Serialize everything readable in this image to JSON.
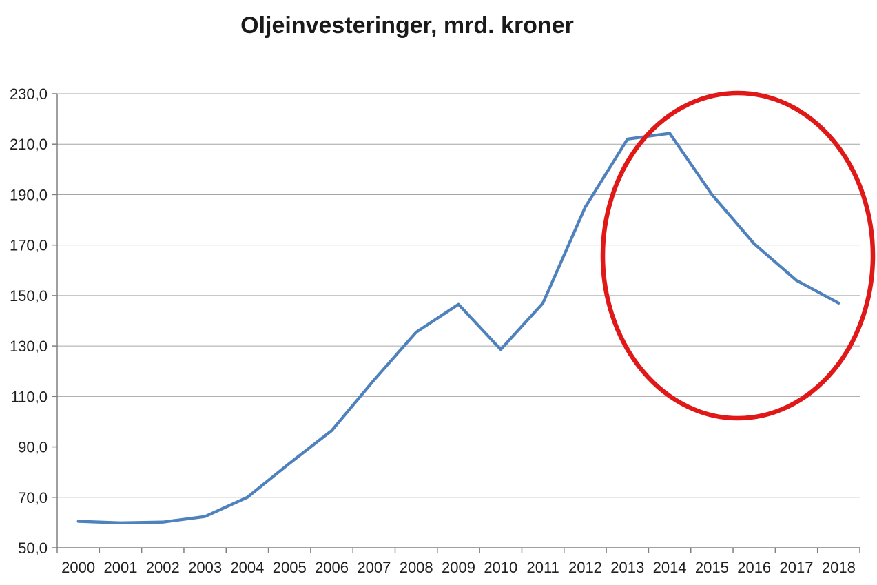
{
  "page": {
    "background_color": "#FFFFFF"
  },
  "chart_data": {
    "type": "line",
    "title": "Oljeinvesteringer, mrd. kroner",
    "categories": [
      "2000",
      "2001",
      "2002",
      "2003",
      "2004",
      "2005",
      "2006",
      "2007",
      "2008",
      "2009",
      "2010",
      "2011",
      "2012",
      "2013",
      "2014",
      "2015",
      "2016",
      "2017",
      "2018"
    ],
    "series": [
      {
        "name": "Oljeinvesteringer (mrd. kroner)",
        "color": "#4F81BD",
        "values": [
          60.5,
          59.9,
          60.2,
          62.4,
          70.0,
          83.5,
          96.5,
          116.5,
          135.5,
          146.5,
          128.6,
          147.0,
          185.0,
          212.0,
          214.3,
          190.0,
          170.5,
          156.0,
          147.0
        ]
      }
    ],
    "xlabel": "",
    "ylabel": "",
    "ylim": [
      50,
      230
    ],
    "y_tick_step": 20,
    "y_tick_labels": [
      "230,0",
      "210,0",
      "190,0",
      "170,0",
      "150,0",
      "130,0",
      "110,0",
      "90,0",
      "70,0",
      "50,0"
    ],
    "decimal_separator": ",",
    "grid": "horizontal",
    "legend_position": "none",
    "annotation": {
      "shape": "ellipse",
      "color": "#E01818",
      "highlights_years": "2014-2018"
    }
  },
  "colors": {
    "gridline": "#A6A6A6",
    "axis": "#808080",
    "tick_label": "#1F1F1F",
    "title": "#1A1A1A"
  }
}
